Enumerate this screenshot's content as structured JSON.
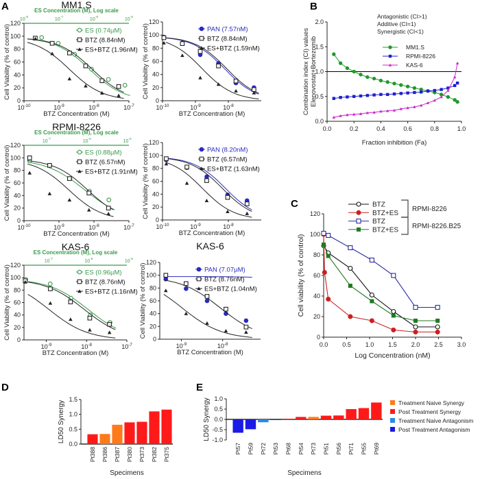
{
  "figure": {
    "panel_labels": [
      "A",
      "B",
      "C",
      "D",
      "E"
    ]
  },
  "chart_data": [
    {
      "id": "A1L",
      "panel": "A",
      "type": "line",
      "title": "MM1.S",
      "xlabel": "BTZ Concentration (M)",
      "ylabel": "Cell Viability (% of control)",
      "xscale": "log",
      "xlim": [
        1e-10,
        1e-07
      ],
      "xticks": [
        1e-10,
        1e-09,
        1e-08,
        1e-07
      ],
      "ylim": [
        0,
        120
      ],
      "yticks": [
        0,
        20,
        40,
        60,
        80,
        100,
        120
      ],
      "top_axis": {
        "label": "ES Concentration (M), Log scale",
        "xlim": [
          1e-08,
          1e-05
        ],
        "xticks": [
          1e-08,
          1e-07,
          1e-06,
          1e-05
        ],
        "color": "#3a9a4a"
      },
      "series": [
        {
          "name": "ES (0.74µM)",
          "color": "#3a9a4a",
          "marker": "circle-open",
          "axis": "top",
          "x": [
            3.2e-08,
            9.5e-08,
            2.8e-07,
            8.5e-07,
            2.6e-06,
            7.7e-06
          ],
          "y": [
            98,
            89,
            72,
            49,
            33,
            24
          ]
        },
        {
          "name": "BTZ (8.84nM)",
          "color": "#222222",
          "marker": "square-open",
          "axis": "bottom",
          "x": [
            2.1e-10,
            6.4e-10,
            2e-09,
            5.8e-09,
            1.7e-08,
            5.1e-08
          ],
          "y": [
            97,
            89,
            74,
            54,
            31,
            22
          ]
        },
        {
          "name": "ES+BTZ (1.96nM)",
          "color": "#222222",
          "marker": "triangle",
          "axis": "bottom",
          "x": [
            2.1e-10,
            6.4e-10,
            2e-09,
            5.8e-09,
            1.7e-08,
            5.1e-08
          ],
          "y": [
            96,
            73,
            34,
            23,
            12,
            8
          ]
        }
      ]
    },
    {
      "id": "A1R",
      "panel": "A",
      "type": "line",
      "title": "",
      "xlabel": "BTZ Concentration (M)",
      "ylabel": "Cell Viability (% of control)",
      "xscale": "log",
      "xlim": [
        1e-10,
        1e-07
      ],
      "xticks": [
        1e-10,
        1e-09,
        1e-08
      ],
      "ylim": [
        0,
        120
      ],
      "yticks": [
        0,
        20,
        40,
        60,
        80,
        100,
        120
      ],
      "series": [
        {
          "name": "PAN (7.57nM)",
          "color": "#2a2ac0",
          "marker": "circle-filled",
          "axis": "bottom",
          "x": [
            1.1e-10,
            4e-10,
            1.4e-09,
            5e-09,
            1.7e-08,
            6e-08
          ],
          "y": [
            97,
            88,
            70,
            57,
            27,
            20
          ]
        },
        {
          "name": "BTZ (8.84nM)",
          "color": "#222222",
          "marker": "square-open",
          "axis": "bottom",
          "x": [
            1.1e-10,
            4e-10,
            1.4e-09,
            5e-09,
            1.7e-08,
            6e-08
          ],
          "y": [
            96,
            87,
            75,
            53,
            30,
            17
          ]
        },
        {
          "name": "ES+BTZ (1.59nM)",
          "color": "#222222",
          "marker": "triangle",
          "axis": "bottom",
          "x": [
            1.1e-10,
            4e-10,
            1.4e-09,
            5e-09,
            1.7e-08,
            6e-08
          ],
          "y": [
            88,
            69,
            35,
            25,
            15,
            12
          ]
        }
      ]
    },
    {
      "id": "A2L",
      "panel": "A",
      "type": "line",
      "title": "RPMI-8226",
      "xlabel": "BTZ Concentration (M)",
      "ylabel": "Cell Viability (% of control)",
      "xscale": "log",
      "xlim": [
        1e-10,
        1e-07
      ],
      "xticks": [
        1e-10,
        1e-09,
        1e-08,
        1e-07
      ],
      "ylim": [
        0,
        120
      ],
      "yticks": [
        0,
        20,
        40,
        60,
        80,
        100,
        120
      ],
      "top_axis": {
        "label": "ES Concentration (M), Log scale",
        "xlim": [
          2.75e-08,
          1.1e-05
        ],
        "xticks": [
          1e-07,
          1e-06,
          1e-05
        ],
        "color": "#3a9a4a"
      },
      "series": [
        {
          "name": "ES (0.88µM)",
          "color": "#3a9a4a",
          "marker": "circle-open",
          "axis": "top",
          "x": [
            3.8e-08,
            1.2e-07,
            3.8e-07,
            1.15e-06,
            3.5e-06
          ],
          "y": [
            95,
            88,
            67,
            47,
            33
          ]
        },
        {
          "name": "BTZ (6.57nM)",
          "color": "#222222",
          "marker": "square-open",
          "axis": "bottom",
          "x": [
            1.45e-10,
            5.4e-10,
            2e-09,
            7.2e-09,
            2.6e-08
          ],
          "y": [
            100,
            88,
            67,
            44,
            20
          ]
        },
        {
          "name": "ES+BTZ (1.91nM)",
          "color": "#222222",
          "marker": "triangle",
          "axis": "bottom",
          "x": [
            1.45e-10,
            5.4e-10,
            2e-09,
            7.2e-09,
            2.6e-08
          ],
          "y": [
            76,
            43,
            33,
            17,
            11
          ]
        }
      ]
    },
    {
      "id": "A2R",
      "panel": "A",
      "type": "line",
      "title": "",
      "xlabel": "BTZ Concentration (M)",
      "ylabel": "Cell Viability (% of control)",
      "xscale": "log",
      "xlim": [
        1e-10,
        1e-07
      ],
      "xticks": [
        1e-10,
        1e-09,
        1e-08
      ],
      "ylim": [
        0,
        120
      ],
      "yticks": [
        0,
        20,
        40,
        60,
        80,
        100,
        120
      ],
      "series": [
        {
          "name": "PAN (8.20nM)",
          "color": "#2a2ac0",
          "marker": "circle-filled",
          "axis": "bottom",
          "x": [
            1.3e-10,
            5.5e-10,
            2.2e-09,
            9.5e-09,
            3.7e-08
          ],
          "y": [
            93,
            81,
            67,
            39,
            30
          ]
        },
        {
          "name": "BTZ (6.57nM)",
          "color": "#222222",
          "marker": "square-open",
          "axis": "bottom",
          "x": [
            1.3e-10,
            5.5e-10,
            2.2e-09,
            9.5e-09,
            3.7e-08
          ],
          "y": [
            95,
            82,
            61,
            35,
            25
          ]
        },
        {
          "name": "ES+BTZ (1.63nM)",
          "color": "#222222",
          "marker": "triangle",
          "axis": "bottom",
          "x": [
            1.3e-10,
            5.5e-10,
            2.2e-09,
            9.5e-09,
            3.7e-08
          ],
          "y": [
            87,
            57,
            30,
            13,
            10
          ]
        }
      ]
    },
    {
      "id": "A3L",
      "panel": "A",
      "type": "line",
      "title": "KAS-6",
      "xlabel": "BTZ Concentration (M)",
      "ylabel": "Cell Viability (% of control)",
      "xscale": "log",
      "xlim": [
        2.8e-10,
        1e-07
      ],
      "xticks": [
        1e-09,
        1e-08,
        1e-07
      ],
      "ylim": [
        0,
        120
      ],
      "yticks": [
        0,
        20,
        40,
        60,
        80,
        100,
        120
      ],
      "top_axis": {
        "label": "ES Concentration (M), Log scale",
        "xlim": [
          2.45e-08,
          8.9e-06
        ],
        "xticks": [
          1e-07,
          1e-06,
          1e-05
        ],
        "color": "#3a9a4a"
      },
      "series": [
        {
          "name": "ES (0.96µM)",
          "color": "#3a9a4a",
          "marker": "circle-open",
          "axis": "top",
          "x": [
            2.7e-08,
            1.1e-07,
            3.6e-07,
            1.1e-06,
            3.4e-06
          ],
          "y": [
            97,
            90,
            67,
            40,
            28
          ]
        },
        {
          "name": "BTZ (8.76nM)",
          "color": "#222222",
          "marker": "square-open",
          "axis": "bottom",
          "x": [
            3e-10,
            1.26e-09,
            4e-09,
            1.2e-08,
            3.7e-08
          ],
          "y": [
            95,
            82,
            61,
            35,
            25
          ]
        },
        {
          "name": "ES+BTZ (1.16nM)",
          "color": "#222222",
          "marker": "triangle",
          "axis": "bottom",
          "x": [
            3e-10,
            1.26e-09,
            4e-09,
            1.2e-08,
            3.7e-08
          ],
          "y": [
            93,
            59,
            33,
            16,
            12
          ]
        }
      ]
    },
    {
      "id": "A3R",
      "panel": "A",
      "type": "line",
      "title": "KAS-6",
      "xlabel": "BTZ Concentration (M)",
      "ylabel": "Cell Viability (% of control)",
      "xscale": "log",
      "xlim": [
        3e-10,
        8.3e-08
      ],
      "xticks": [
        1e-09,
        1e-08
      ],
      "ylim": [
        0,
        120
      ],
      "yticks": [
        0,
        20,
        40,
        60,
        80,
        100,
        120
      ],
      "series": [
        {
          "name": "PAN (7.07µM)",
          "color": "#2a2ac0",
          "marker": "circle-filled",
          "axis": "bottom",
          "x": [
            4.2e-10,
            1.3e-09,
            4.2e-09,
            1.2e-08,
            3.7e-08
          ],
          "y": [
            94,
            79,
            60,
            40,
            29
          ]
        },
        {
          "name": "BTZ (8.76nM)",
          "color": "#222222",
          "marker": "square-open",
          "axis": "bottom",
          "x": [
            4.2e-10,
            1.3e-09,
            4.2e-09,
            1.2e-08,
            3.7e-08
          ],
          "y": [
            100,
            87,
            67,
            47,
            19
          ]
        },
        {
          "name": "ES+BTZ (1.04nM)",
          "color": "#222222",
          "marker": "triangle",
          "axis": "bottom",
          "x": [
            4.2e-10,
            1.3e-09,
            4.2e-09,
            1.2e-08,
            3.7e-08
          ],
          "y": [
            76,
            40,
            25,
            13,
            11
          ]
        }
      ]
    },
    {
      "id": "B",
      "panel": "B",
      "type": "line",
      "xlabel": "Fraction inhibition (Fa)",
      "ylabel": [
        "Combination index (CI) values",
        "Elenovostat+Bortezomib"
      ],
      "xlim": [
        0,
        1
      ],
      "xticks": [
        0,
        0.2,
        0.4,
        0.6,
        0.8,
        1.0
      ],
      "ylim": [
        0,
        2
      ],
      "yticks": [
        0,
        0.5,
        1.0,
        1.5,
        2.0
      ],
      "reference_line": 1.0,
      "annotations": [
        "Antagonistic (CI>1)",
        "Additive (CI=1)",
        "Synergistic (CI<1)"
      ],
      "x": [
        0.05,
        0.1,
        0.15,
        0.2,
        0.25,
        0.3,
        0.35,
        0.4,
        0.45,
        0.5,
        0.55,
        0.6,
        0.65,
        0.7,
        0.75,
        0.8,
        0.85,
        0.9,
        0.95,
        0.97
      ],
      "series": [
        {
          "name": "MM1.S",
          "color": "#1f9a2a",
          "marker": "circle-filled",
          "y": [
            1.35,
            1.17,
            1.07,
            1.0,
            0.94,
            0.89,
            0.86,
            0.82,
            0.79,
            0.76,
            0.73,
            0.7,
            0.67,
            0.64,
            0.61,
            0.58,
            0.54,
            0.49,
            0.43,
            0.39
          ]
        },
        {
          "name": "RPMI-8226",
          "color": "#1f1fcf",
          "marker": "square-filled",
          "y": [
            0.46,
            0.48,
            0.49,
            0.5,
            0.51,
            0.52,
            0.53,
            0.54,
            0.54,
            0.55,
            0.56,
            0.57,
            0.58,
            0.59,
            0.61,
            0.62,
            0.64,
            0.67,
            0.72,
            0.77
          ]
        },
        {
          "name": "KAS-6",
          "color": "#cc22cc",
          "marker": "triangle",
          "y": [
            0.08,
            0.11,
            0.13,
            0.14,
            0.15,
            0.17,
            0.18,
            0.2,
            0.21,
            0.22,
            0.25,
            0.27,
            0.29,
            0.32,
            0.37,
            0.42,
            0.49,
            0.62,
            0.89,
            1.17
          ]
        }
      ]
    },
    {
      "id": "C",
      "panel": "C",
      "type": "line",
      "xlabel": "Log Concentration (nM)",
      "ylabel": "Cell viability (% of control)",
      "xlim": [
        0,
        3
      ],
      "xticks": [
        0,
        0.5,
        1.0,
        1.5,
        2.0,
        2.5,
        3.0
      ],
      "ylim": [
        0,
        120
      ],
      "yticks": [
        0,
        20,
        40,
        60,
        80,
        100,
        120
      ],
      "groups": [
        {
          "label": "RPMI-8226",
          "series": [
            0,
            1
          ]
        },
        {
          "label": "RPMI-8226.B25",
          "series": [
            2,
            3
          ]
        }
      ],
      "series": [
        {
          "name": "BTZ",
          "color": "#111111",
          "marker": "circle-open",
          "x": [
            0,
            0.1,
            0.58,
            1.05,
            1.52,
            2.0,
            2.48
          ],
          "y": [
            89,
            82,
            67,
            41,
            25,
            10,
            10
          ]
        },
        {
          "name": "BTZ+ES",
          "color": "#cc1f1f",
          "marker": "circle-filled",
          "x": [
            0,
            0.02,
            0.1,
            0.58,
            1.05,
            1.52,
            2.0,
            2.48
          ],
          "y": [
            100,
            63,
            37,
            20,
            16,
            7,
            5,
            5
          ]
        },
        {
          "name": "BTZ",
          "color": "#2a2aa0",
          "marker": "square-open",
          "x": [
            0,
            0.1,
            0.58,
            1.05,
            1.52,
            2.0,
            2.48
          ],
          "y": [
            101,
            99,
            87,
            75,
            60,
            29,
            29
          ]
        },
        {
          "name": "BTZ+ES",
          "color": "#1f7a1f",
          "marker": "square-filled",
          "x": [
            0,
            0.1,
            0.58,
            1.05,
            1.52,
            2.0,
            2.48
          ],
          "y": [
            90,
            79,
            50,
            35,
            21,
            16,
            16
          ]
        }
      ]
    },
    {
      "id": "D",
      "panel": "D",
      "type": "bar",
      "xlabel": "Specimens",
      "ylabel": "LD50 Synergy",
      "ylim": [
        0,
        1.5
      ],
      "yticks": [
        0,
        0.5,
        1.0,
        1.5
      ],
      "categories": [
        "Pt388",
        "Pt386",
        "Pt387",
        "Pt380",
        "Pt373",
        "Pt382",
        "Pt375"
      ],
      "values": [
        0.33,
        0.34,
        0.65,
        0.73,
        0.75,
        1.1,
        1.16
      ],
      "bar_groups": [
        "Post Treatment Synergy",
        "Treatment Naive Synergy",
        "Treatment Naive Synergy",
        "Post Treatment Synergy",
        "Post Treatment Synergy",
        "Post Treatment Synergy",
        "Post Treatment Synergy"
      ]
    },
    {
      "id": "E",
      "panel": "E",
      "type": "bar",
      "xlabel": "Specimens",
      "ylabel": "LD50 Synergy",
      "ylim": [
        -1,
        1
      ],
      "yticks": [
        -1.0,
        -0.5,
        0.0,
        0.5,
        1.0
      ],
      "categories": [
        "Pt57",
        "Pt59",
        "Pt72",
        "Pt53",
        "Pt68",
        "Pt54",
        "Pt73",
        "Pt51",
        "Pt56",
        "Pt71",
        "Pt55",
        "Pt69"
      ],
      "values": [
        -0.65,
        -0.48,
        -0.14,
        -0.03,
        0.03,
        0.12,
        0.12,
        0.18,
        0.19,
        0.5,
        0.55,
        0.82
      ],
      "bar_groups": [
        "Post Treatment Antagonism",
        "Post Treatment Antagonism",
        "Treatment Naive Antagonism",
        "Post Treatment Antagonism",
        "Post Treatment Synergy",
        "Post Treatment Synergy",
        "Treatment Naive Synergy",
        "Post Treatment Synergy",
        "Post Treatment Synergy",
        "Post Treatment Synergy",
        "Post Treatment Synergy",
        "Post Treatment Synergy"
      ],
      "legend": [
        {
          "name": "Treatment Naive Synergy",
          "color": "#ff7a1a"
        },
        {
          "name": "Post Treatment Synergy",
          "color": "#ff1a1a"
        },
        {
          "name": "Treatment Naive Antagonism",
          "color": "#2a8ae6"
        },
        {
          "name": "Post Treatment Antagonism",
          "color": "#1a1ae6"
        }
      ]
    }
  ]
}
